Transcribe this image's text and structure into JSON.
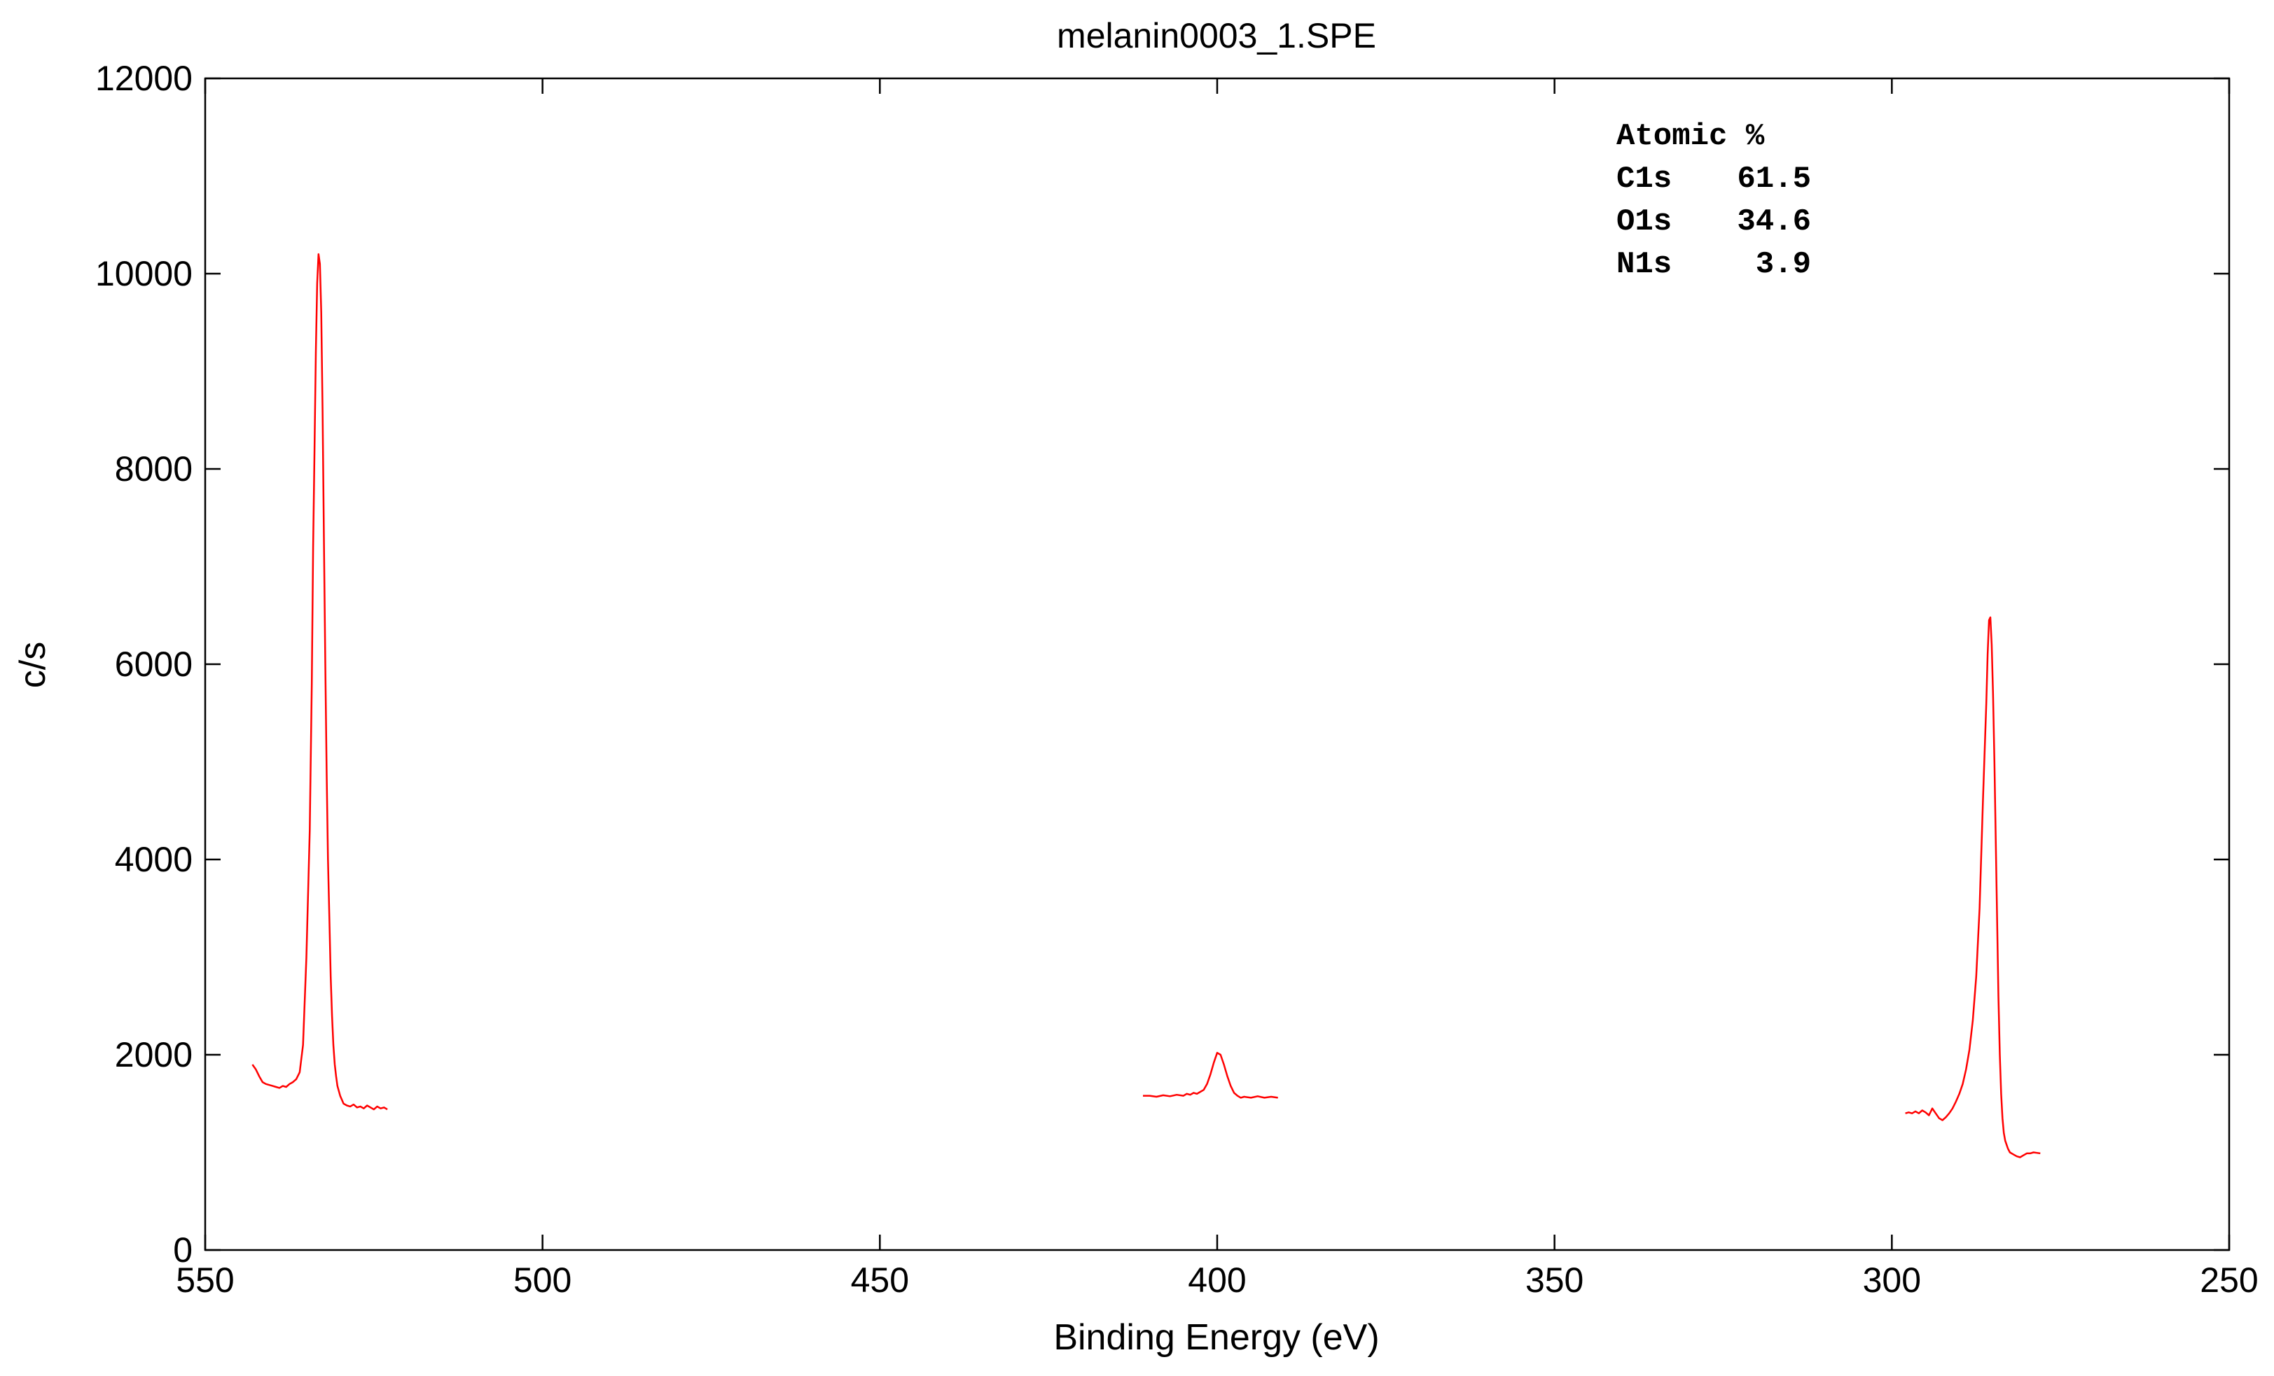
{
  "chart_data": {
    "type": "line",
    "title": "melanin0003_1.SPE",
    "xlabel": "Binding Energy (eV)",
    "ylabel": "c/s",
    "xlim": [
      550,
      250
    ],
    "ylim": [
      0,
      12000
    ],
    "x_reversed": true,
    "xticks": [
      550,
      500,
      450,
      400,
      350,
      300,
      250
    ],
    "yticks": [
      0,
      2000,
      4000,
      6000,
      8000,
      10000,
      12000
    ],
    "grid": false,
    "line_color": "#ff0000",
    "annotation": {
      "header": "Atomic %",
      "rows": [
        {
          "element": "C1s",
          "value": "61.5"
        },
        {
          "element": "O1s",
          "value": "34.6"
        },
        {
          "element": "N1s",
          "value": "3.9"
        }
      ]
    },
    "series": [
      {
        "region": "O1s",
        "x": [
          543,
          542.5,
          542,
          541.5,
          541,
          540.5,
          540,
          539.5,
          539,
          538.5,
          538,
          537.5,
          537,
          536.5,
          536,
          535.5,
          535,
          534.5,
          534.2,
          534,
          533.8,
          533.6,
          533.4,
          533.2,
          533,
          532.8,
          532.6,
          532.4,
          532.2,
          532,
          531.8,
          531.6,
          531.4,
          531.2,
          531,
          530.8,
          530.6,
          530.4,
          530,
          529.5,
          529,
          528.5,
          528,
          527.5,
          527,
          526.5,
          526,
          525.5,
          525,
          524.5,
          524,
          523.5,
          523
        ],
        "y": [
          1900,
          1850,
          1780,
          1720,
          1700,
          1690,
          1680,
          1670,
          1660,
          1680,
          1670,
          1700,
          1720,
          1750,
          1820,
          2100,
          3000,
          4300,
          5800,
          7200,
          8200,
          9200,
          9900,
          10200,
          10100,
          9600,
          8600,
          7300,
          6000,
          4900,
          4000,
          3400,
          2800,
          2400,
          2100,
          1900,
          1780,
          1680,
          1580,
          1500,
          1480,
          1470,
          1490,
          1460,
          1470,
          1450,
          1480,
          1460,
          1440,
          1470,
          1450,
          1460,
          1440
        ]
      },
      {
        "region": "N1s",
        "x": [
          411,
          410,
          409,
          408,
          407,
          406,
          405,
          404.5,
          404,
          403.5,
          403,
          402.5,
          402,
          401.5,
          401,
          400.5,
          400,
          399.5,
          399,
          398.5,
          398,
          397.5,
          397,
          396.5,
          396,
          395,
          394,
          393,
          392,
          391
        ],
        "y": [
          1580,
          1580,
          1570,
          1585,
          1575,
          1590,
          1580,
          1600,
          1590,
          1610,
          1600,
          1620,
          1640,
          1700,
          1800,
          1920,
          2020,
          2000,
          1900,
          1780,
          1680,
          1610,
          1580,
          1560,
          1570,
          1560,
          1575,
          1560,
          1570,
          1560
        ]
      },
      {
        "region": "C1s",
        "x": [
          298,
          297.5,
          297,
          296.5,
          296,
          295.5,
          295,
          294.5,
          294,
          293.5,
          293,
          292.5,
          292,
          291.5,
          291,
          290.5,
          290,
          289.5,
          289,
          288.5,
          288,
          287.5,
          287,
          286.5,
          286,
          285.8,
          285.6,
          285.4,
          285.2,
          285,
          284.8,
          284.6,
          284.4,
          284.2,
          284,
          283.8,
          283.6,
          283.4,
          283.2,
          283,
          282.8,
          282.5,
          282,
          281.5,
          281,
          280.5,
          280,
          279.5,
          279,
          278.5,
          278
        ],
        "y": [
          1400,
          1410,
          1400,
          1420,
          1400,
          1430,
          1410,
          1380,
          1450,
          1400,
          1350,
          1330,
          1360,
          1400,
          1450,
          1520,
          1600,
          1700,
          1850,
          2050,
          2350,
          2800,
          3500,
          4600,
          5600,
          6100,
          6450,
          6480,
          6200,
          5700,
          5000,
          4200,
          3400,
          2600,
          2000,
          1600,
          1350,
          1200,
          1120,
          1080,
          1040,
          1000,
          980,
          960,
          950,
          970,
          990,
          990,
          1000,
          995,
          990
        ]
      }
    ]
  }
}
